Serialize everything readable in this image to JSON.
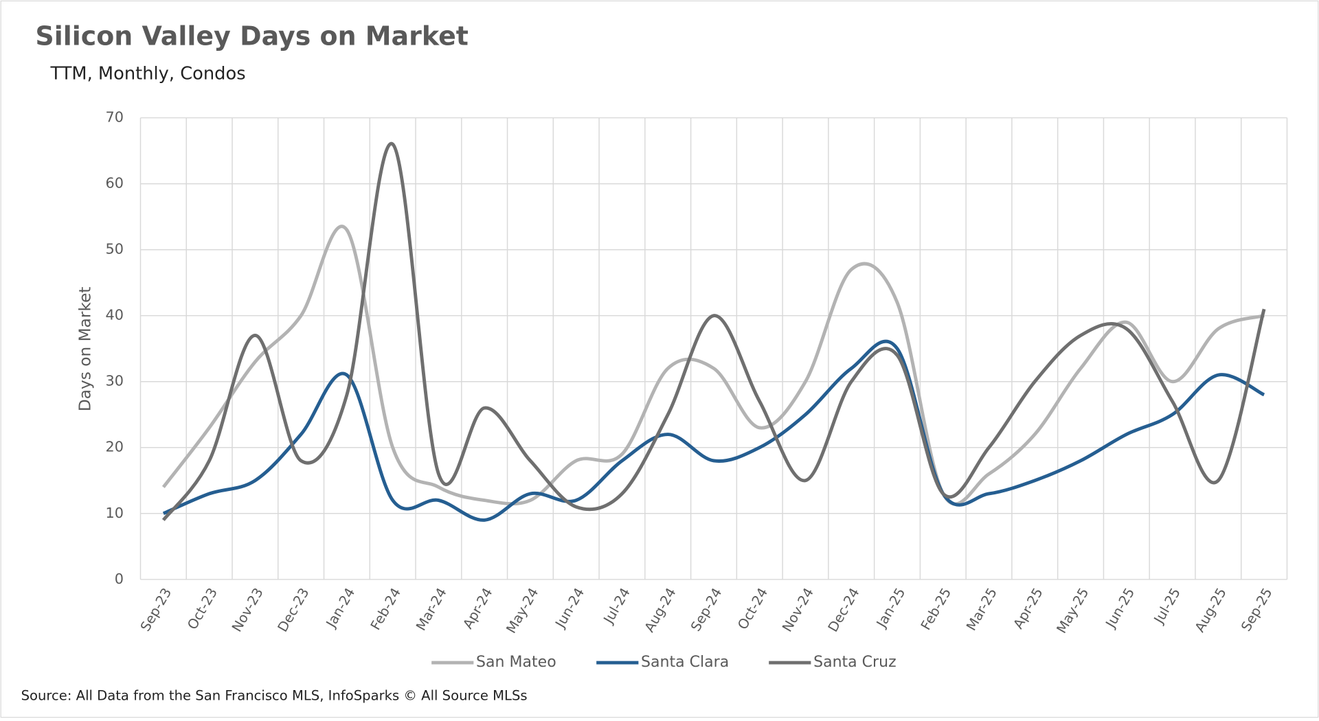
{
  "chart_data": {
    "type": "line",
    "title": "Silicon Valley Days on Market",
    "subtitle": "TTM, Monthly, Condos",
    "y_label": "Days on Market",
    "source": "Source: All Data from the San Francisco MLS, InfoSparks © All Source MLSs",
    "categories": [
      "Sep-23",
      "Oct-23",
      "Nov-23",
      "Dec-23",
      "Jan-24",
      "Feb-24",
      "Mar-24",
      "Apr-24",
      "May-24",
      "Jun-24",
      "Jul-24",
      "Aug-24",
      "Sep-24",
      "Oct-24",
      "Nov-24",
      "Dec-24",
      "Jan-25",
      "Feb-25",
      "Mar-25",
      "Apr-25",
      "May-25",
      "Jun-25",
      "Jul-25",
      "Aug-25",
      "Sep-25"
    ],
    "series": [
      {
        "name": "San Mateo",
        "color": "#b3b3b3",
        "values": [
          14,
          23,
          33,
          40,
          53,
          20,
          14,
          12,
          12,
          18,
          19,
          32,
          32,
          23,
          30,
          47,
          42,
          13,
          16,
          22,
          32,
          39,
          30,
          38,
          40
        ]
      },
      {
        "name": "Santa Clara",
        "color": "#255e91",
        "values": [
          10,
          13,
          15,
          22,
          31,
          12,
          12,
          9,
          13,
          12,
          18,
          22,
          18,
          20,
          25,
          32,
          35,
          13,
          13,
          15,
          18,
          22,
          25,
          31,
          28
        ]
      },
      {
        "name": "Santa Cruz",
        "color": "#6f6f6f",
        "values": [
          9,
          18,
          37,
          18,
          28,
          66,
          16,
          26,
          18,
          11,
          13,
          25,
          40,
          27,
          15,
          30,
          34,
          13,
          20,
          30,
          37,
          38,
          27,
          15,
          41
        ]
      }
    ],
    "ylim": [
      0,
      70
    ],
    "yticks": [
      0,
      10,
      20,
      30,
      40,
      50,
      60,
      70
    ],
    "grid": true,
    "legend": "bottom"
  }
}
